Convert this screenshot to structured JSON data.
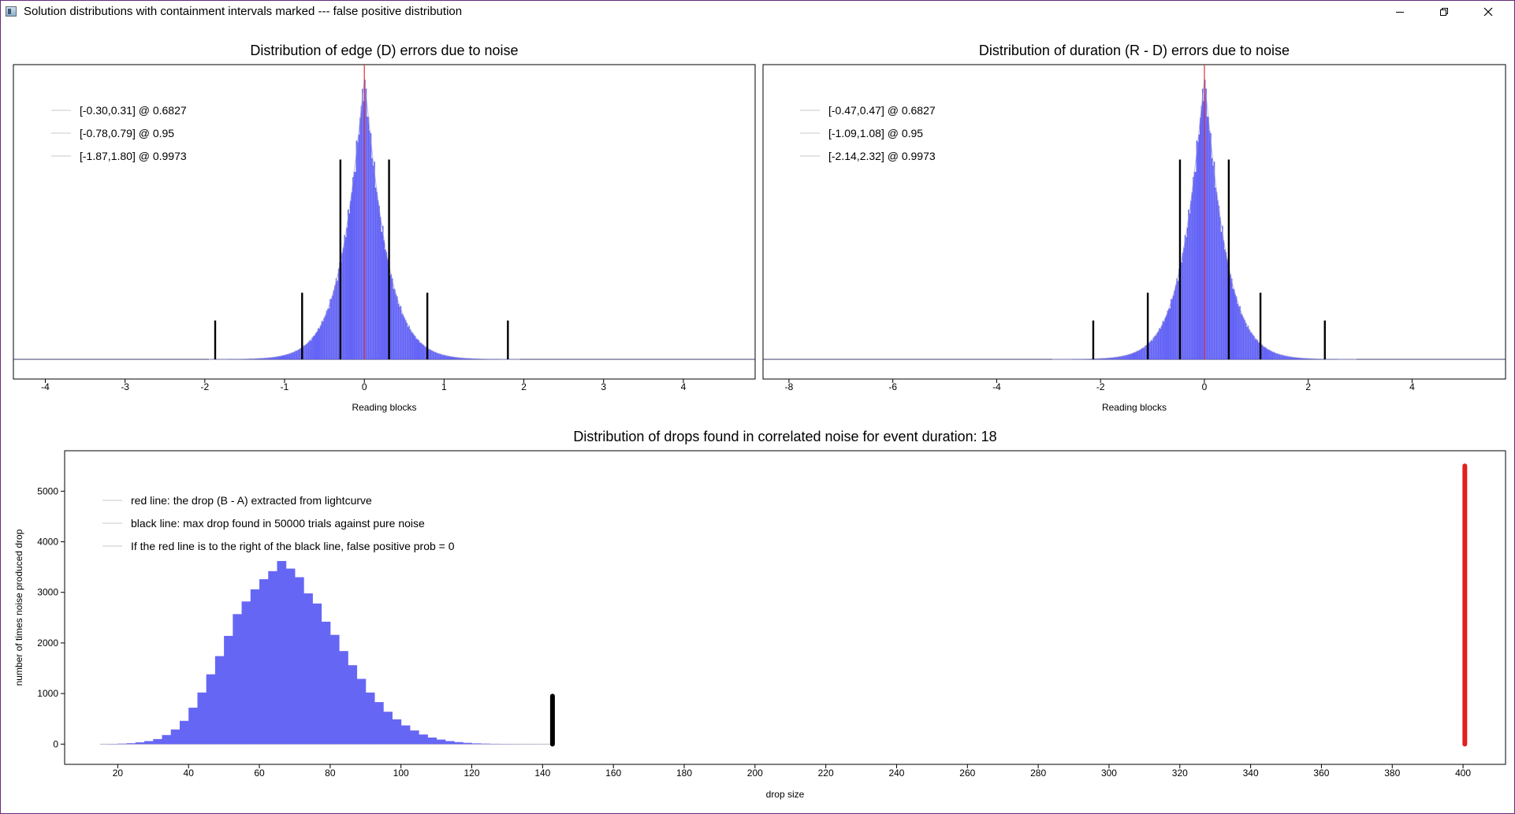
{
  "window": {
    "title": "Solution distributions with containment intervals marked --- false positive distribution",
    "icons": [
      "app-icon",
      "minimize-icon",
      "restore-icon",
      "close-icon"
    ]
  },
  "chart_data": [
    {
      "type": "bar",
      "title": "Distribution of edge (D) errors due to noise",
      "xlabel": "Reading blocks",
      "ylabel": "",
      "xlim": [
        -4.4,
        4.9
      ],
      "xticks": [
        -4,
        -3,
        -2,
        -1,
        0,
        1,
        2,
        3,
        4
      ],
      "y_axis_labels": false,
      "distribution": {
        "shape": "laplace-like",
        "center": 0,
        "scale": 0.3,
        "peak": 1.0,
        "color": "#5b5bf5"
      },
      "center_line": {
        "x": 0,
        "color": "#e03030"
      },
      "intervals": [
        {
          "label": "[-0.30,0.31] @ 0.6827",
          "lo": -0.3,
          "hi": 0.31,
          "marker_height": 0.72
        },
        {
          "label": "[-0.78,0.79] @ 0.95",
          "lo": -0.78,
          "hi": 0.79,
          "marker_height": 0.24
        },
        {
          "label": "[-1.87,1.80] @ 0.9973",
          "lo": -1.87,
          "hi": 1.8,
          "marker_height": 0.14
        }
      ],
      "legend_position": "top-left",
      "grid": false
    },
    {
      "type": "bar",
      "title": "Distribution of duration (R - D) errors due to noise",
      "xlabel": "Reading blocks",
      "ylabel": "",
      "xlim": [
        -8.5,
        5.8
      ],
      "xticks": [
        -8,
        -6,
        -4,
        -2,
        0,
        2,
        4
      ],
      "y_axis_labels": false,
      "distribution": {
        "shape": "laplace-like",
        "center": 0,
        "scale": 0.45,
        "peak": 1.0,
        "color": "#5b5bf5"
      },
      "center_line": {
        "x": 0,
        "color": "#e03030"
      },
      "intervals": [
        {
          "label": "[-0.47,0.47] @ 0.6827",
          "lo": -0.47,
          "hi": 0.47,
          "marker_height": 0.72
        },
        {
          "label": "[-1.09,1.08] @ 0.95",
          "lo": -1.09,
          "hi": 1.08,
          "marker_height": 0.24
        },
        {
          "label": "[-2.14,2.32] @ 0.9973",
          "lo": -2.14,
          "hi": 2.32,
          "marker_height": 0.14
        }
      ],
      "legend_position": "top-left",
      "grid": false
    },
    {
      "type": "bar",
      "title": "Distribution of drops found in correlated noise for event duration: 18",
      "xlabel": "drop size",
      "ylabel": "number of times noise produced drop",
      "xlim": [
        5,
        412
      ],
      "ylim": [
        -400,
        5800
      ],
      "xticks": [
        20,
        40,
        60,
        80,
        100,
        120,
        140,
        160,
        180,
        200,
        220,
        240,
        260,
        280,
        300,
        320,
        340,
        360,
        380,
        400
      ],
      "yticks": [
        0,
        1000,
        2000,
        3000,
        4000,
        5000
      ],
      "bin_width": 2.5,
      "bins": [
        {
          "x": 15,
          "count": 2
        },
        {
          "x": 17.5,
          "count": 5
        },
        {
          "x": 20,
          "count": 10
        },
        {
          "x": 22.5,
          "count": 18
        },
        {
          "x": 25,
          "count": 35
        },
        {
          "x": 27.5,
          "count": 60
        },
        {
          "x": 30,
          "count": 100
        },
        {
          "x": 32.5,
          "count": 180
        },
        {
          "x": 35,
          "count": 290
        },
        {
          "x": 37.5,
          "count": 460
        },
        {
          "x": 40,
          "count": 720
        },
        {
          "x": 42.5,
          "count": 1020
        },
        {
          "x": 45,
          "count": 1380
        },
        {
          "x": 47.5,
          "count": 1740
        },
        {
          "x": 50,
          "count": 2140
        },
        {
          "x": 52.5,
          "count": 2570
        },
        {
          "x": 55,
          "count": 2820
        },
        {
          "x": 57.5,
          "count": 3060
        },
        {
          "x": 60,
          "count": 3260
        },
        {
          "x": 62.5,
          "count": 3420
        },
        {
          "x": 65,
          "count": 3620
        },
        {
          "x": 67.5,
          "count": 3470
        },
        {
          "x": 70,
          "count": 3300
        },
        {
          "x": 72.5,
          "count": 2980
        },
        {
          "x": 75,
          "count": 2780
        },
        {
          "x": 77.5,
          "count": 2420
        },
        {
          "x": 80,
          "count": 2160
        },
        {
          "x": 82.5,
          "count": 1840
        },
        {
          "x": 85,
          "count": 1560
        },
        {
          "x": 87.5,
          "count": 1290
        },
        {
          "x": 90,
          "count": 1020
        },
        {
          "x": 92.5,
          "count": 830
        },
        {
          "x": 95,
          "count": 640
        },
        {
          "x": 97.5,
          "count": 490
        },
        {
          "x": 100,
          "count": 370
        },
        {
          "x": 102.5,
          "count": 270
        },
        {
          "x": 105,
          "count": 190
        },
        {
          "x": 107.5,
          "count": 130
        },
        {
          "x": 110,
          "count": 90
        },
        {
          "x": 112.5,
          "count": 60
        },
        {
          "x": 115,
          "count": 40
        },
        {
          "x": 117.5,
          "count": 25
        },
        {
          "x": 120,
          "count": 15
        },
        {
          "x": 122.5,
          "count": 10
        },
        {
          "x": 125,
          "count": 6
        },
        {
          "x": 127.5,
          "count": 4
        },
        {
          "x": 130,
          "count": 3
        },
        {
          "x": 132.5,
          "count": 2
        },
        {
          "x": 135,
          "count": 2
        },
        {
          "x": 137.5,
          "count": 1
        },
        {
          "x": 140,
          "count": 1
        }
      ],
      "markers": [
        {
          "name": "max-drop-in-noise",
          "x": 142.8,
          "y_top": 950,
          "color": "#000000"
        },
        {
          "name": "extracted-drop",
          "x": 400.5,
          "y_top": 5500,
          "color": "#e02020"
        }
      ],
      "legend": [
        "red line: the drop (B - A) extracted from lightcurve",
        "black line: max drop found in 50000 trials against pure noise",
        "If the red line is to the right of the black line, false positive prob = 0"
      ],
      "legend_position": "top-left",
      "bar_color": "#6666f5",
      "grid": false
    }
  ]
}
